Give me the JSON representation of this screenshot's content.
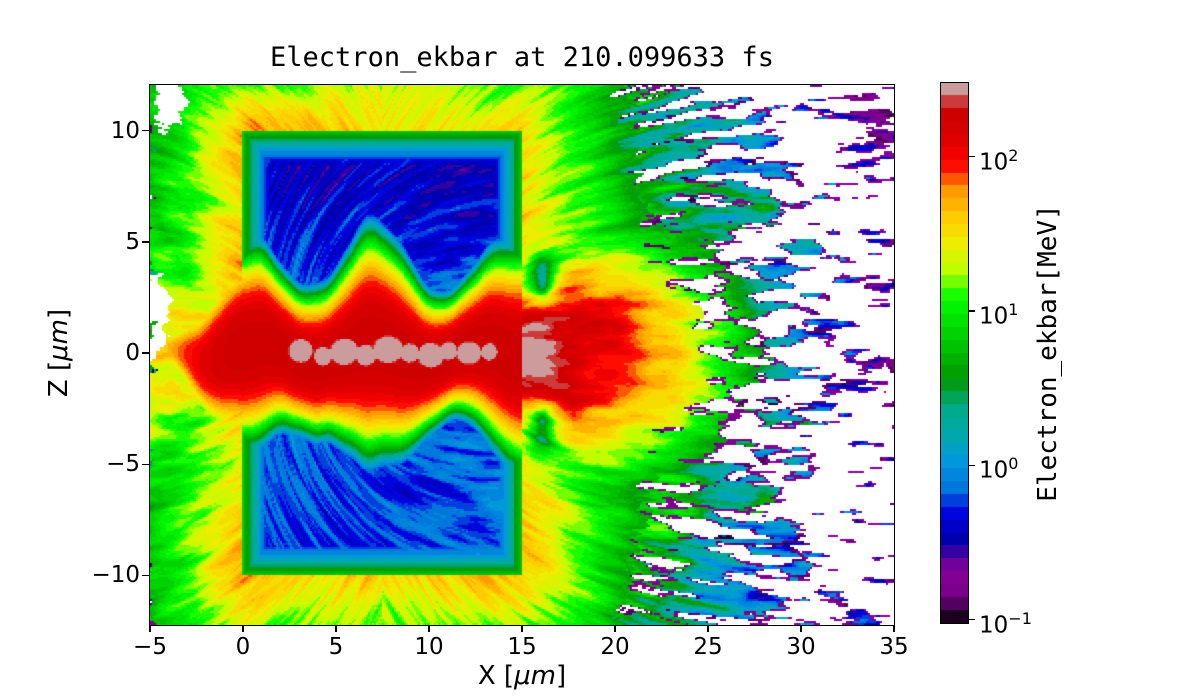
{
  "figure": {
    "background": "#ffffff",
    "title": "Electron_ekbar at 210.099633 fs"
  },
  "chart_data": {
    "type": "heatmap",
    "title": "Electron_ekbar at 210.099633 fs",
    "quantity": "Electron_ekbar",
    "time_fs": 210.099633,
    "xlabel": "X [μm]",
    "ylabel": "Z [μm]",
    "xlabel_parts": {
      "pre": "X [",
      "unit": "μm",
      "post": "]"
    },
    "ylabel_parts": {
      "pre": "Z [",
      "unit": "μm",
      "post": "]"
    },
    "xlim": [
      -5,
      35
    ],
    "ylim": [
      -12.23,
      12.05
    ],
    "xticks": [
      -5,
      0,
      5,
      10,
      15,
      20,
      25,
      30,
      35
    ],
    "xtick_labels": [
      "−5",
      "0",
      "5",
      "10",
      "15",
      "20",
      "25",
      "30",
      "35"
    ],
    "yticks": [
      10,
      5,
      0,
      -5,
      -10
    ],
    "ytick_labels": [
      "10",
      "5",
      "0",
      "−5",
      "−10"
    ],
    "grid": false,
    "colorbar": {
      "label": "Electron_ekbar[MeV]",
      "scale": "log",
      "vmin": 0.095,
      "vmax": 300,
      "ticks": [
        100,
        10,
        1,
        0.1
      ],
      "tick_mantissa": "10",
      "tick_exponents": [
        "2",
        "1",
        "0",
        "−1"
      ],
      "colormap": "nipy_spectral",
      "levels": 42,
      "colormap_stops": [
        [
          0.0,
          "#000000"
        ],
        [
          0.05,
          "#770088"
        ],
        [
          0.1,
          "#880099"
        ],
        [
          0.15,
          "#0000aa"
        ],
        [
          0.2,
          "#0000dd"
        ],
        [
          0.25,
          "#0077dd"
        ],
        [
          0.3,
          "#0099dd"
        ],
        [
          0.35,
          "#00aaaa"
        ],
        [
          0.4,
          "#00aa88"
        ],
        [
          0.45,
          "#009900"
        ],
        [
          0.5,
          "#00bb00"
        ],
        [
          0.55,
          "#00dd00"
        ],
        [
          0.6,
          "#00ff00"
        ],
        [
          0.65,
          "#bbff00"
        ],
        [
          0.7,
          "#eeee00"
        ],
        [
          0.75,
          "#ffcc00"
        ],
        [
          0.8,
          "#ff9900"
        ],
        [
          0.85,
          "#ff0000"
        ],
        [
          0.9,
          "#dd0000"
        ],
        [
          0.95,
          "#cc0000"
        ],
        [
          1.0,
          "#cccccc"
        ]
      ]
    },
    "features": {
      "target_slab": {
        "x_um": [
          0,
          15
        ],
        "z_um": [
          -10,
          10
        ],
        "ekbar_MeV": [
          0.4,
          1.5
        ],
        "desc": "cold target bulk (blue)"
      },
      "hot_channel": {
        "x_um": [
          -3,
          15
        ],
        "z_center_um": 0,
        "half_width_um": 2.5,
        "ekbar_MeV": [
          100,
          300
        ],
        "desc": "laser-heated channel (red)"
      },
      "channel_core_blobs": {
        "x_um": [
          3,
          13.5
        ],
        "ekbar_MeV": 300,
        "desc": "hottest blobs (grey-pink, top of scale)"
      },
      "rear_spray": {
        "x_um": [
          15,
          23
        ],
        "z_um": [
          -7,
          7
        ],
        "ekbar_MeV": [
          10,
          300
        ],
        "desc": "hot electron fan at target rear"
      },
      "sheath_halo": {
        "thickness_um": 6,
        "ekbar_MeV": [
          3,
          50
        ],
        "desc": "yellow/green sheath surrounding target"
      },
      "ejected_filaments": {
        "x_um": [
          20,
          35
        ],
        "ekbar_MeV": [
          0.15,
          5
        ],
        "desc": "sparse radial filaments (teal/blue/purple) over white vacuum"
      }
    }
  }
}
